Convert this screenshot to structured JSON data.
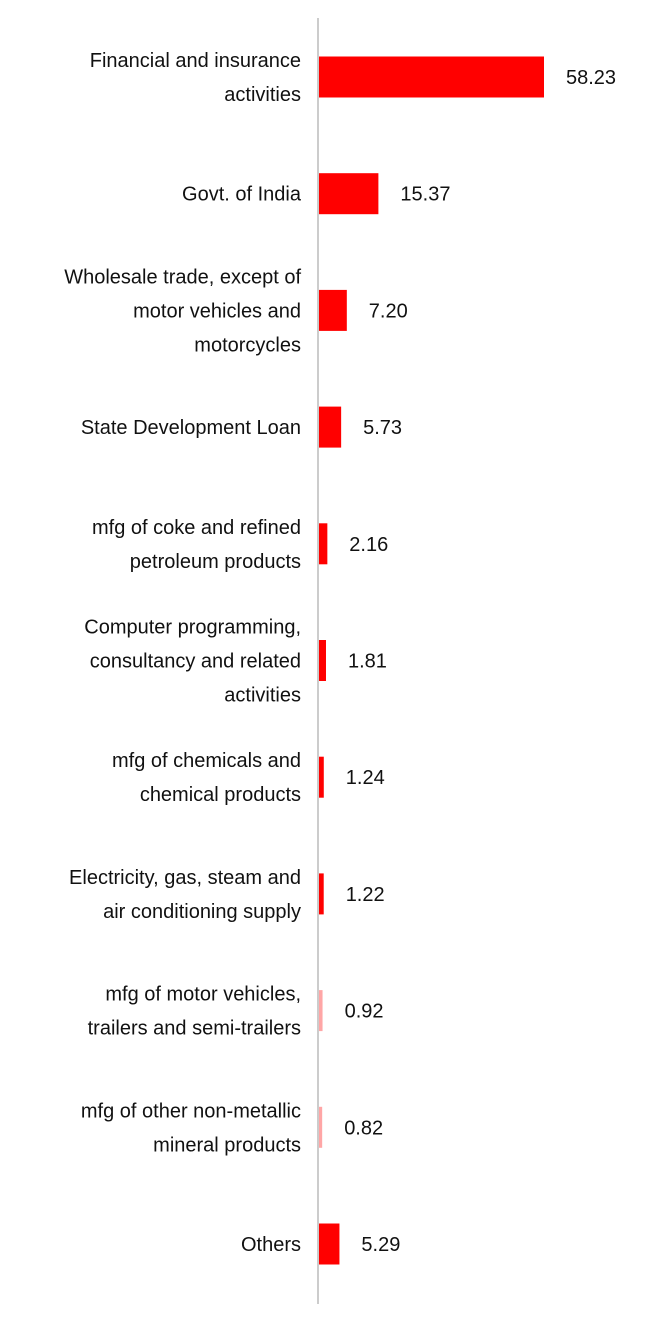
{
  "chart_data": {
    "type": "bar",
    "orientation": "horizontal",
    "title": "",
    "xlabel": "",
    "ylabel": "",
    "grid": false,
    "legend": "none",
    "bar_color": "#ff0000",
    "axis_color": "#cccccc",
    "xlim": [
      0,
      58.23
    ],
    "categories": [
      [
        "Financial and insurance",
        "activities"
      ],
      [
        "Govt. of India"
      ],
      [
        "Wholesale trade, except of",
        "motor vehicles and",
        "motorcycles"
      ],
      [
        "State Development Loan"
      ],
      [
        "mfg of coke and refined",
        "petroleum products"
      ],
      [
        "Computer programming,",
        "consultancy and related",
        "activities"
      ],
      [
        "mfg of chemicals and",
        "chemical products"
      ],
      [
        "Electricity, gas, steam and",
        "air conditioning supply"
      ],
      [
        "mfg of motor vehicles,",
        "trailers and semi-trailers"
      ],
      [
        "mfg of other non-metallic",
        "mineral products"
      ],
      [
        "Others"
      ]
    ],
    "values": [
      58.23,
      15.37,
      7.2,
      5.73,
      2.16,
      1.81,
      1.24,
      1.22,
      0.92,
      0.82,
      5.29
    ],
    "value_labels": [
      "58.23",
      "15.37",
      "7.20",
      "5.73",
      "2.16",
      "1.81",
      "1.24",
      "1.22",
      "0.92",
      "0.82",
      "5.29"
    ]
  }
}
